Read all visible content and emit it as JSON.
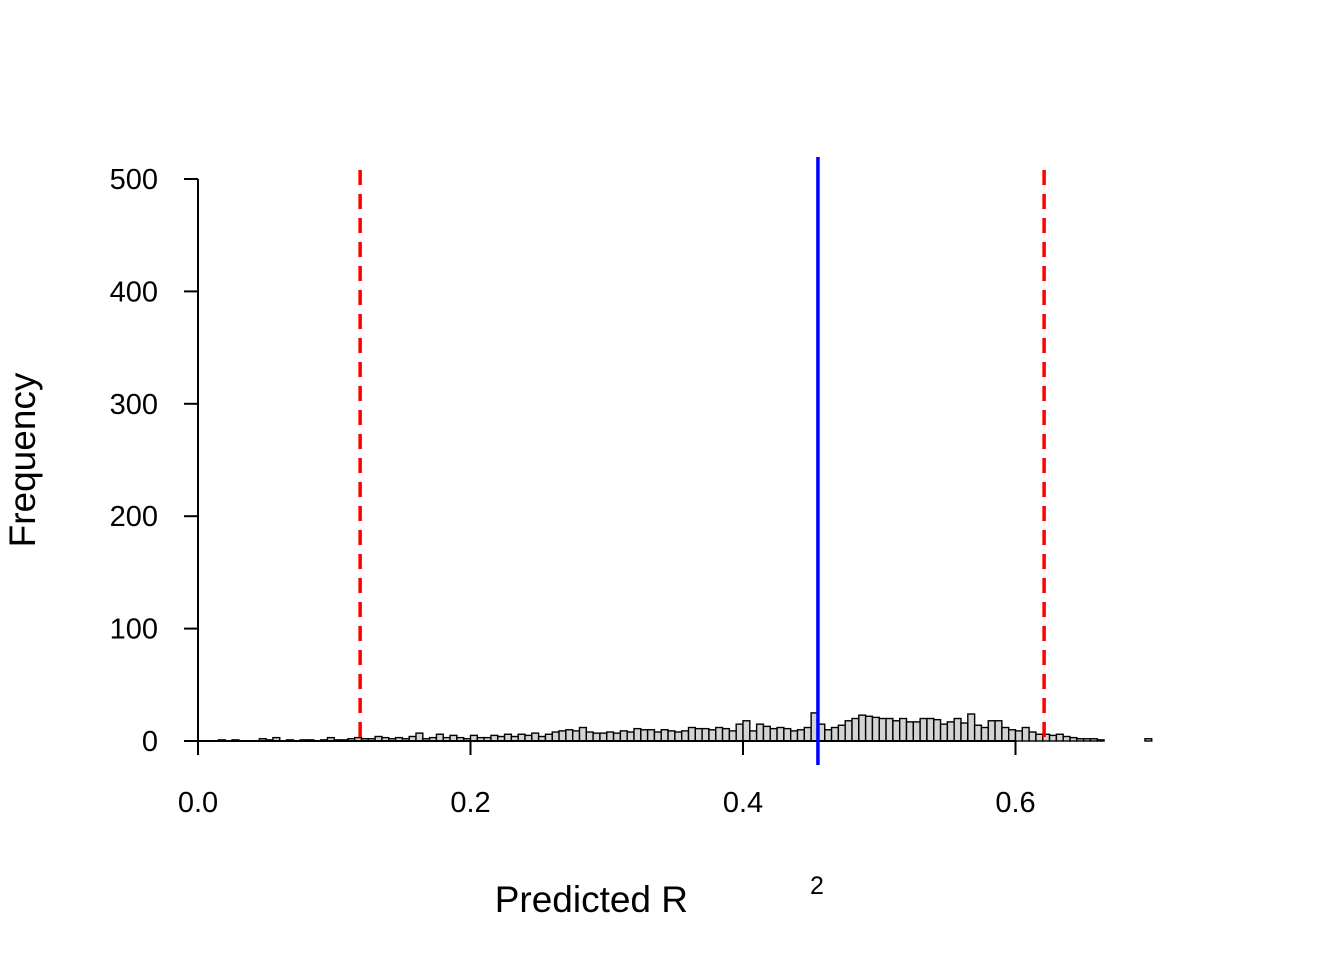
{
  "chart_data": {
    "type": "histogram",
    "xlabel": "Predicted R",
    "xlabel_superscript": "2",
    "ylabel": "Frequency",
    "xlim": [
      0.0,
      0.7
    ],
    "ylim": [
      0,
      500
    ],
    "x_ticks": [
      0.0,
      0.2,
      0.4,
      0.6
    ],
    "x_tick_labels": [
      "0.0",
      "0.2",
      "0.4",
      "0.6"
    ],
    "y_ticks": [
      0,
      100,
      200,
      300,
      400,
      500
    ],
    "y_tick_labels": [
      "0",
      "100",
      "200",
      "300",
      "400",
      "500"
    ],
    "grid": false,
    "bin_width": 0.005,
    "bar_fill": "#d3d3d3",
    "bar_stroke": "#000000",
    "bins": [
      [
        0.015,
        1
      ],
      [
        0.02,
        0
      ],
      [
        0.025,
        1
      ],
      [
        0.03,
        0
      ],
      [
        0.035,
        0
      ],
      [
        0.04,
        0
      ],
      [
        0.045,
        2
      ],
      [
        0.05,
        1
      ],
      [
        0.055,
        3
      ],
      [
        0.06,
        0
      ],
      [
        0.065,
        1
      ],
      [
        0.07,
        0
      ],
      [
        0.075,
        1
      ],
      [
        0.08,
        1
      ],
      [
        0.085,
        0
      ],
      [
        0.09,
        1
      ],
      [
        0.095,
        3
      ],
      [
        0.1,
        1
      ],
      [
        0.105,
        1
      ],
      [
        0.11,
        2
      ],
      [
        0.115,
        3
      ],
      [
        0.12,
        2
      ],
      [
        0.125,
        2
      ],
      [
        0.13,
        4
      ],
      [
        0.135,
        3
      ],
      [
        0.14,
        2
      ],
      [
        0.145,
        3
      ],
      [
        0.15,
        2
      ],
      [
        0.155,
        4
      ],
      [
        0.16,
        7
      ],
      [
        0.165,
        2
      ],
      [
        0.17,
        3
      ],
      [
        0.175,
        6
      ],
      [
        0.18,
        3
      ],
      [
        0.185,
        5
      ],
      [
        0.19,
        3
      ],
      [
        0.195,
        2
      ],
      [
        0.2,
        5
      ],
      [
        0.205,
        3
      ],
      [
        0.21,
        3
      ],
      [
        0.215,
        5
      ],
      [
        0.22,
        4
      ],
      [
        0.225,
        6
      ],
      [
        0.23,
        4
      ],
      [
        0.235,
        6
      ],
      [
        0.24,
        5
      ],
      [
        0.245,
        7
      ],
      [
        0.25,
        4
      ],
      [
        0.255,
        6
      ],
      [
        0.26,
        8
      ],
      [
        0.265,
        9
      ],
      [
        0.27,
        10
      ],
      [
        0.275,
        9
      ],
      [
        0.28,
        12
      ],
      [
        0.285,
        8
      ],
      [
        0.29,
        7
      ],
      [
        0.295,
        7
      ],
      [
        0.3,
        8
      ],
      [
        0.305,
        7
      ],
      [
        0.31,
        9
      ],
      [
        0.315,
        8
      ],
      [
        0.32,
        11
      ],
      [
        0.325,
        10
      ],
      [
        0.33,
        10
      ],
      [
        0.335,
        8
      ],
      [
        0.34,
        10
      ],
      [
        0.345,
        9
      ],
      [
        0.35,
        8
      ],
      [
        0.355,
        9
      ],
      [
        0.36,
        12
      ],
      [
        0.365,
        11
      ],
      [
        0.37,
        11
      ],
      [
        0.375,
        10
      ],
      [
        0.38,
        12
      ],
      [
        0.385,
        11
      ],
      [
        0.39,
        9
      ],
      [
        0.395,
        15
      ],
      [
        0.4,
        18
      ],
      [
        0.405,
        9
      ],
      [
        0.41,
        15
      ],
      [
        0.415,
        13
      ],
      [
        0.42,
        11
      ],
      [
        0.425,
        12
      ],
      [
        0.43,
        11
      ],
      [
        0.435,
        9
      ],
      [
        0.44,
        10
      ],
      [
        0.445,
        12
      ],
      [
        0.45,
        25
      ],
      [
        0.455,
        15
      ],
      [
        0.46,
        10
      ],
      [
        0.465,
        12
      ],
      [
        0.47,
        14
      ],
      [
        0.475,
        18
      ],
      [
        0.48,
        20
      ],
      [
        0.485,
        23
      ],
      [
        0.49,
        22
      ],
      [
        0.495,
        21
      ],
      [
        0.5,
        20
      ],
      [
        0.505,
        20
      ],
      [
        0.51,
        18
      ],
      [
        0.515,
        20
      ],
      [
        0.52,
        17
      ],
      [
        0.525,
        17
      ],
      [
        0.53,
        20
      ],
      [
        0.535,
        20
      ],
      [
        0.54,
        19
      ],
      [
        0.545,
        15
      ],
      [
        0.55,
        17
      ],
      [
        0.555,
        20
      ],
      [
        0.56,
        16
      ],
      [
        0.565,
        24
      ],
      [
        0.57,
        14
      ],
      [
        0.575,
        12
      ],
      [
        0.58,
        18
      ],
      [
        0.585,
        18
      ],
      [
        0.59,
        12
      ],
      [
        0.595,
        10
      ],
      [
        0.6,
        9
      ],
      [
        0.605,
        12
      ],
      [
        0.61,
        8
      ],
      [
        0.615,
        6
      ],
      [
        0.62,
        6
      ],
      [
        0.625,
        5
      ],
      [
        0.63,
        6
      ],
      [
        0.635,
        4
      ],
      [
        0.64,
        3
      ],
      [
        0.645,
        2
      ],
      [
        0.65,
        2
      ],
      [
        0.655,
        2
      ],
      [
        0.66,
        1
      ],
      [
        0.665,
        0
      ],
      [
        0.67,
        0
      ],
      [
        0.675,
        0
      ],
      [
        0.68,
        0
      ],
      [
        0.685,
        0
      ],
      [
        0.69,
        0
      ],
      [
        0.695,
        2
      ]
    ],
    "reference_lines": [
      {
        "x": 0.119,
        "color": "#ff0000",
        "style": "dashed"
      },
      {
        "x": 0.455,
        "color": "#0000ff",
        "style": "solid"
      },
      {
        "x": 0.621,
        "color": "#ff0000",
        "style": "dashed"
      }
    ]
  }
}
